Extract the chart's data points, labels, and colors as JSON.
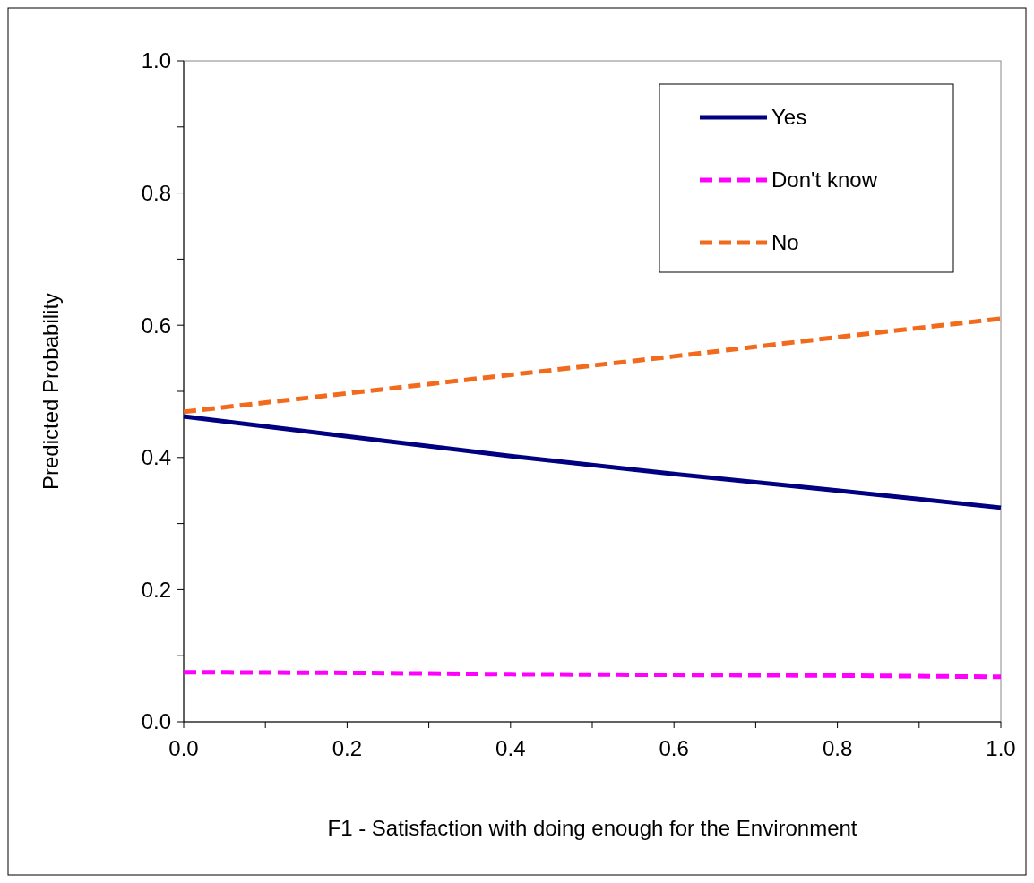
{
  "chart_data": {
    "type": "line",
    "xlabel": "F1 - Satisfaction with doing enough for the Environment",
    "ylabel": "Predicted Probability",
    "x": [
      0,
      0.2,
      0.4,
      0.6,
      0.8,
      1.0
    ],
    "series": [
      {
        "name": "Yes",
        "color": "#000080",
        "line_style": "solid",
        "values": [
          0.462,
          0.432,
          0.402,
          0.375,
          0.35,
          0.324
        ]
      },
      {
        "name": "Don't know",
        "color": "#ff00ff",
        "line_style": "dashed",
        "values": [
          0.075,
          0.074,
          0.072,
          0.071,
          0.07,
          0.068
        ]
      },
      {
        "name": "No",
        "color": "#f26b1d",
        "line_style": "dashed",
        "values": [
          0.469,
          0.497,
          0.525,
          0.553,
          0.582,
          0.61
        ]
      }
    ],
    "xlim": [
      0,
      1
    ],
    "ylim": [
      0,
      1
    ],
    "xticks": [
      {
        "value": 0,
        "label": "0.0"
      },
      {
        "value": 0.1,
        "label": null
      },
      {
        "value": 0.2,
        "label": "0.2"
      },
      {
        "value": 0.3,
        "label": null
      },
      {
        "value": 0.4,
        "label": "0.4"
      },
      {
        "value": 0.5,
        "label": null
      },
      {
        "value": 0.6,
        "label": "0.6"
      },
      {
        "value": 0.7,
        "label": null
      },
      {
        "value": 0.8,
        "label": "0.8"
      },
      {
        "value": 0.9,
        "label": null
      },
      {
        "value": 1,
        "label": "1.0"
      }
    ],
    "yticks": [
      {
        "value": 0,
        "label": "0.0"
      },
      {
        "value": 0.1,
        "label": null
      },
      {
        "value": 0.2,
        "label": "0.2"
      },
      {
        "value": 0.3,
        "label": null
      },
      {
        "value": 0.4,
        "label": "0.4"
      },
      {
        "value": 0.5,
        "label": null
      },
      {
        "value": 0.6,
        "label": "0.6"
      },
      {
        "value": 0.7,
        "label": null
      },
      {
        "value": 0.8,
        "label": "0.8"
      },
      {
        "value": 0.9,
        "label": null
      },
      {
        "value": 1,
        "label": "1.0"
      }
    ],
    "grid": false,
    "legend": "top right",
    "marker": "none"
  }
}
